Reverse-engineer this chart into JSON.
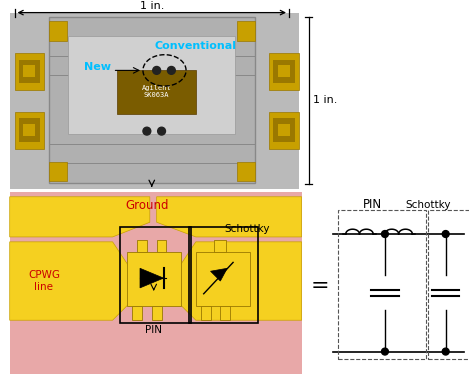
{
  "bg_white": "#FFFFFF",
  "photo_bg": "#C8C8C8",
  "photo_label_conventional": {
    "text": "Conventional",
    "color": "#00BFFF"
  },
  "photo_label_new": {
    "text": "New",
    "color": "#00BFFF"
  },
  "dim_1in_top": "1 in.",
  "dim_1in_right": "1 in.",
  "pink_color": "#E8A8A8",
  "yellow_color": "#F5D020",
  "ground_label_color": "#CC0000",
  "cpwg_label_color": "#CC0000",
  "eq_sign": "=",
  "pin_label": "PIN",
  "schottky_label": "Schottky",
  "ground_label": "Ground",
  "cpwg_label": "CPWG\nline",
  "agilent_text": "Agilent\nSK063A"
}
